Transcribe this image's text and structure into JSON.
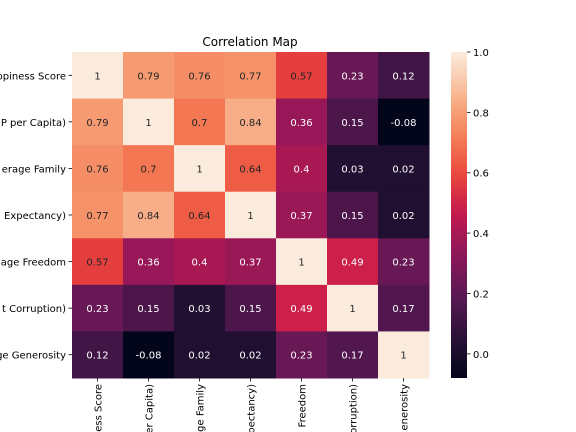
{
  "chart_data": {
    "type": "heatmap",
    "title": "Correlation Map",
    "rows": [
      "ppiness Score",
      "P per Capita)",
      "erage Family",
      ") Expectancy)",
      "age Freedom",
      "t Corruption)",
      "ge Generosity"
    ],
    "cols": [
      "ess Score",
      "er Capita)",
      "ge Family",
      "pectancy)",
      "Freedom",
      "orruption)",
      "enerosity"
    ],
    "values": [
      [
        1,
        0.79,
        0.76,
        0.77,
        0.57,
        0.23,
        0.12
      ],
      [
        0.79,
        1,
        0.7,
        0.84,
        0.36,
        0.15,
        -0.08
      ],
      [
        0.76,
        0.7,
        1,
        0.64,
        0.4,
        0.03,
        0.02
      ],
      [
        0.77,
        0.84,
        0.64,
        1,
        0.37,
        0.15,
        0.02
      ],
      [
        0.57,
        0.36,
        0.4,
        0.37,
        1,
        0.49,
        0.23
      ],
      [
        0.23,
        0.15,
        0.03,
        0.15,
        0.49,
        1,
        0.17
      ],
      [
        0.12,
        -0.08,
        0.02,
        0.02,
        0.23,
        0.17,
        1
      ]
    ],
    "colorbar": {
      "min": -0.08,
      "max": 1,
      "ticks": [
        0.0,
        0.2,
        0.4,
        0.6,
        0.8,
        1.0
      ],
      "tick_labels": [
        "0.0",
        "0.2",
        "0.4",
        "0.6",
        "0.8",
        "1.0"
      ]
    },
    "colormap": "rocket"
  }
}
